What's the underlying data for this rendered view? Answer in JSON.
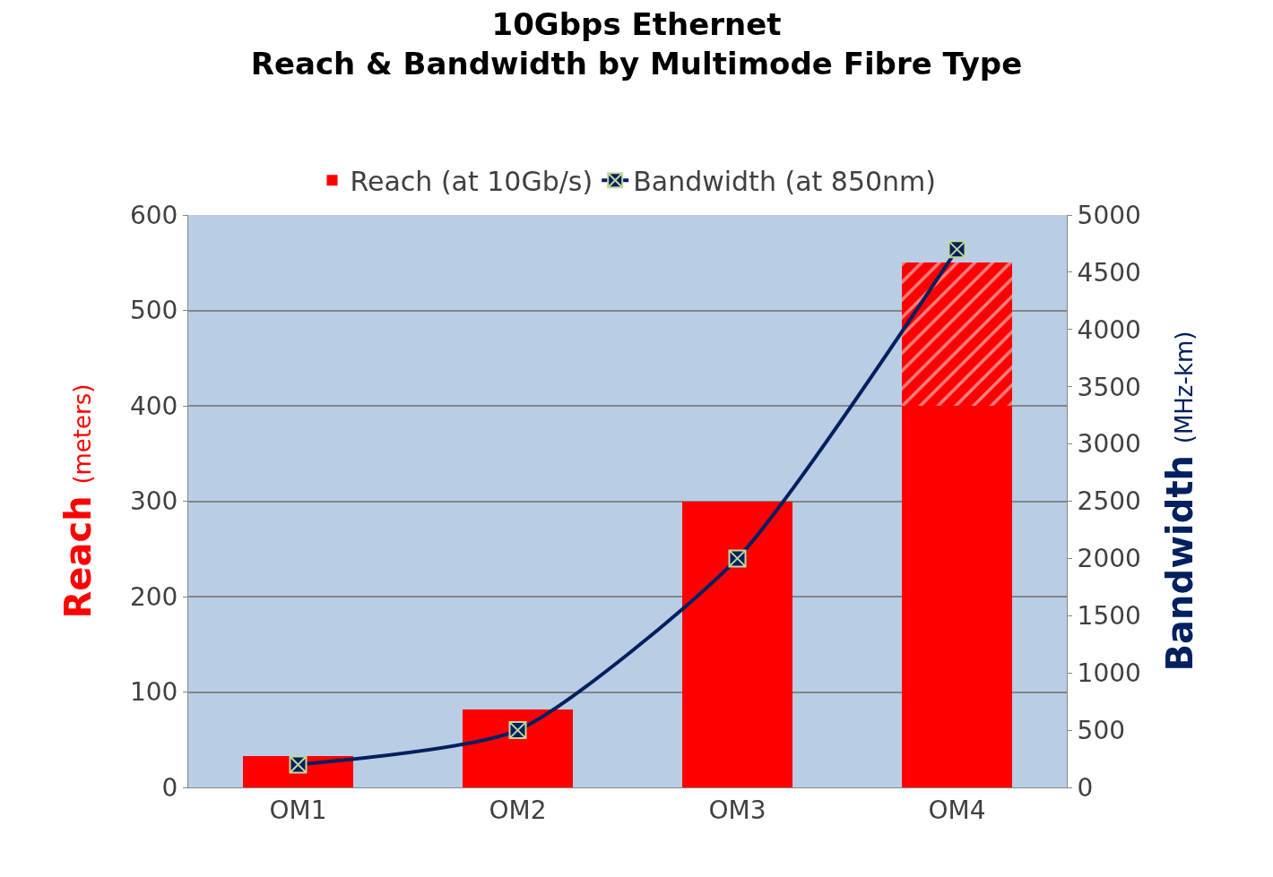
{
  "chart_data": {
    "type": "bar",
    "title": "10Gbps Ethernet\nReach & Bandwidth by Multimode Fibre Type",
    "categories": [
      "OM1",
      "OM2",
      "OM3",
      "OM4"
    ],
    "stacked": true,
    "series": [
      {
        "name": "Reach (at 10Gb/s)",
        "color": "#ff0000",
        "values": [
          33,
          82,
          300,
          400
        ]
      },
      {
        "color": "#ff0000",
        "values": [
          null,
          null,
          null,
          150
        ]
      },
      {
        "name": "Bandwidth (at 850nm)",
        "type": "line",
        "axis": "y2",
        "color": "#002060",
        "marker": "cross",
        "values": [
          200,
          500,
          2000,
          4700
        ]
      }
    ],
    "ylabel": "Reach (meters)",
    "y2label": "Bandwidth (MHz-km)",
    "ylim": [
      0,
      600
    ],
    "yticks": [
      0,
      100,
      200,
      300,
      400,
      500,
      600
    ],
    "y2lim": [
      0,
      5000
    ],
    "y2ticks": [
      0,
      500,
      1000,
      1500,
      2000,
      2500,
      3000,
      3500,
      4000,
      4500,
      5000
    ],
    "grid": "y",
    "legend": "top"
  }
}
